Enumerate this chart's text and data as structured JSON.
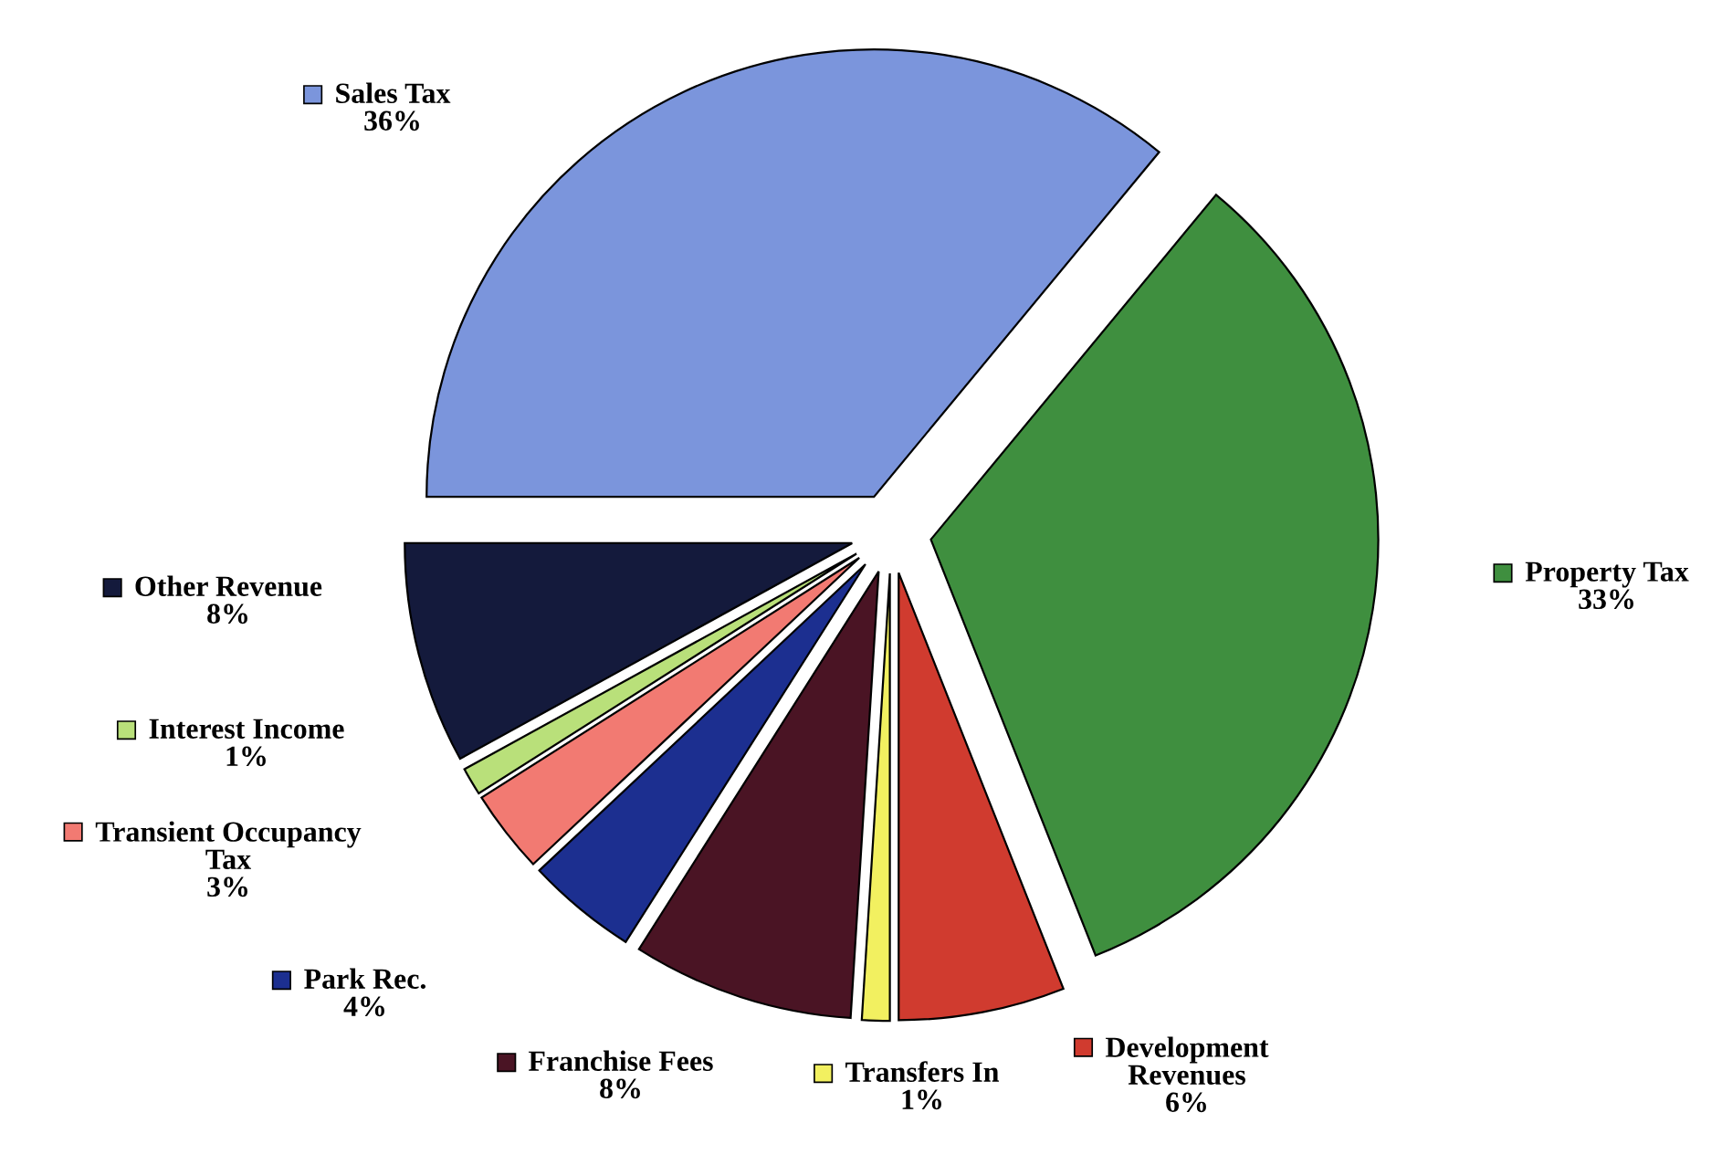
{
  "chart_data": {
    "type": "pie",
    "categories": [
      "Sales Tax",
      "Property Tax",
      "Development Revenues",
      "Transfers In",
      "Franchise Fees",
      "Park Rec.",
      "Transient Occupancy Tax",
      "Interest Income",
      "Other Revenue"
    ],
    "values": [
      36,
      33,
      6,
      1,
      8,
      4,
      3,
      1,
      8
    ],
    "value_labels": [
      "36%",
      "33%",
      "6%",
      "1%",
      "8%",
      "4%",
      "3%",
      "1%",
      "8%"
    ],
    "colors": [
      "#7b95dc",
      "#3f8f3f",
      "#d03b2f",
      "#f2f060",
      "#4a1424",
      "#1c2f90",
      "#f27a72",
      "#b9e07a",
      "#141a3c"
    ],
    "legend": "left"
  }
}
